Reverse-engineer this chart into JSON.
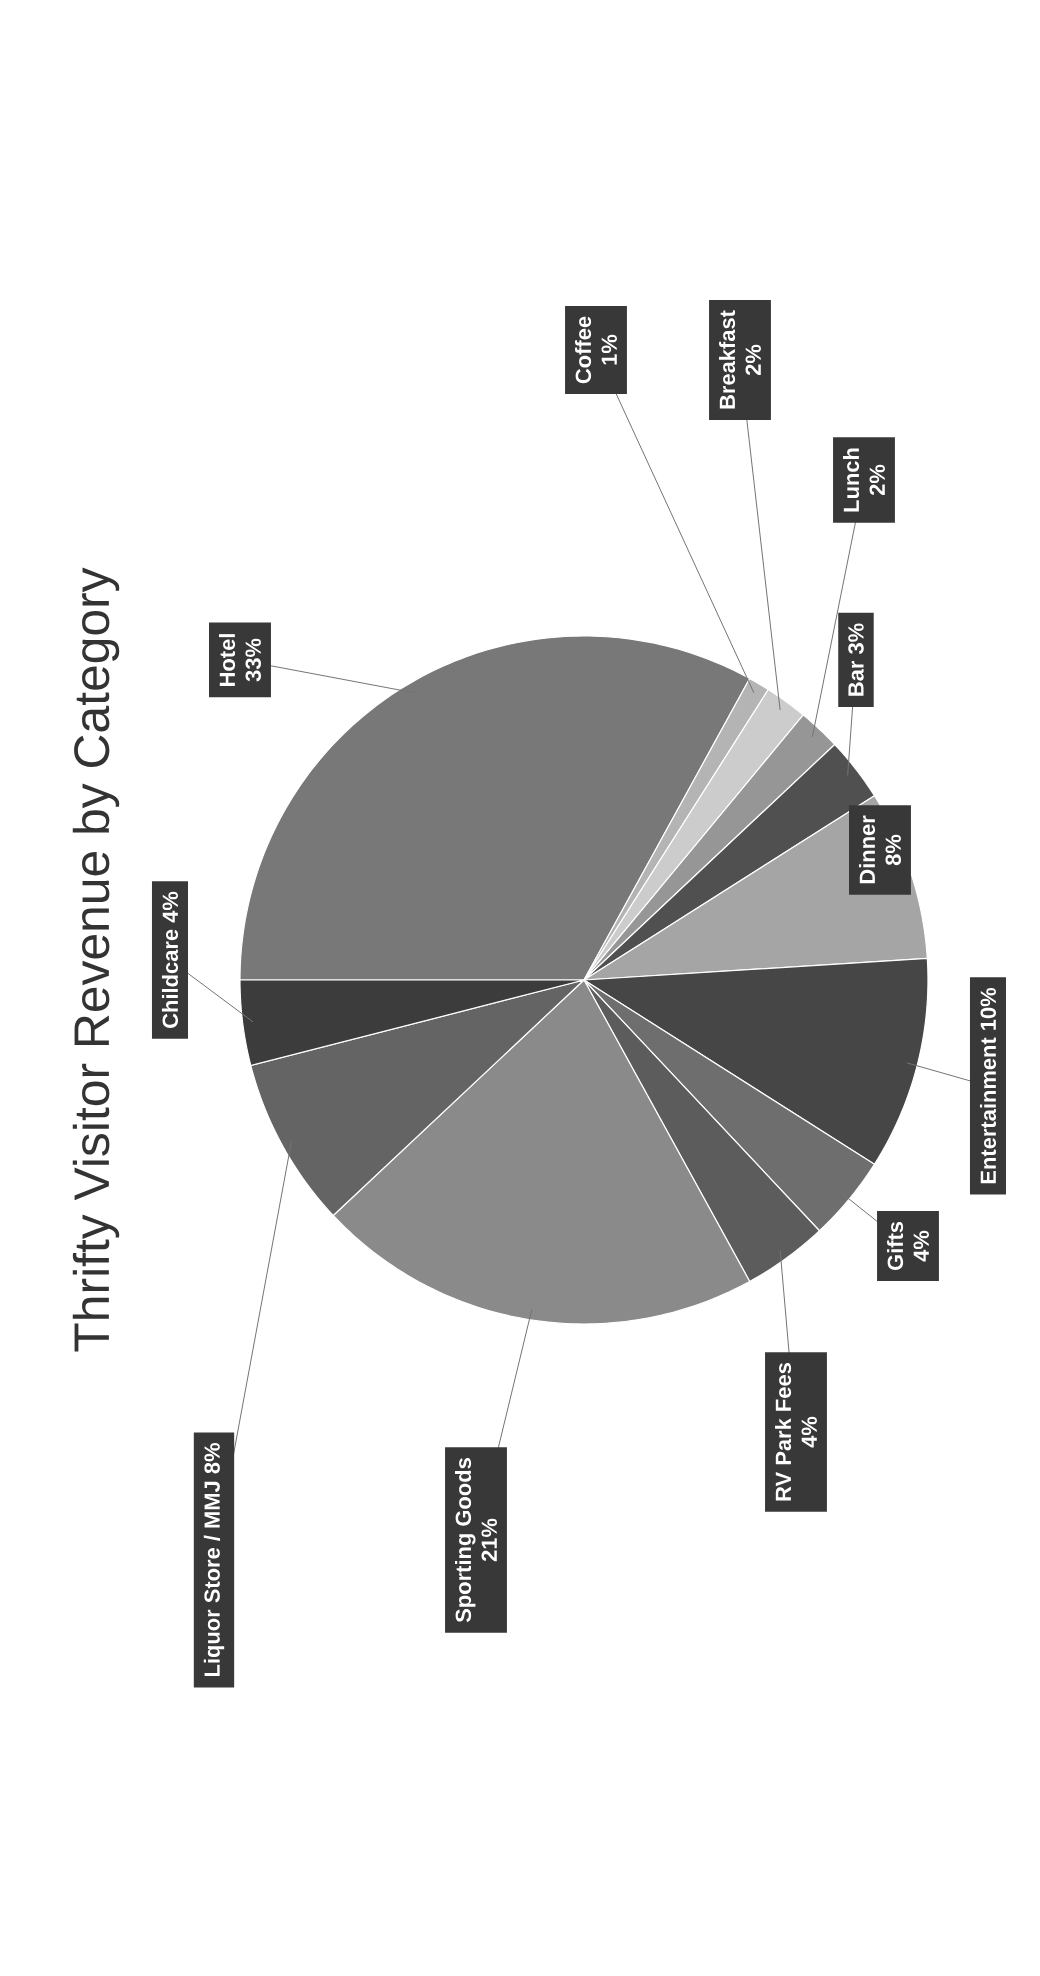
{
  "chart_data": {
    "type": "pie",
    "title": "Thrifty Visitor Revenue by Category",
    "categories": [
      "Hotel",
      "Coffee",
      "Breakfast",
      "Lunch",
      "Bar",
      "Dinner",
      "Entertainment",
      "Gifts",
      "RV Park Fees",
      "Sporting Goods",
      "Liquor Store / MMJ",
      "Childcare"
    ],
    "values": [
      33,
      1,
      2,
      2,
      3,
      8,
      10,
      4,
      4,
      21,
      8,
      4
    ],
    "value_labels": [
      "33%",
      "1%",
      "2%",
      "2%",
      "3%",
      "8%",
      "10%",
      "4%",
      "4%",
      "21%",
      "8%",
      "4%"
    ],
    "colors": [
      "#787878",
      "#b4b4b4",
      "#cccccc",
      "#969696",
      "#505050",
      "#a5a5a5",
      "#464646",
      "#6e6e6e",
      "#5c5c5c",
      "#8a8a8a",
      "#646464",
      "#3c3c3c"
    ]
  }
}
